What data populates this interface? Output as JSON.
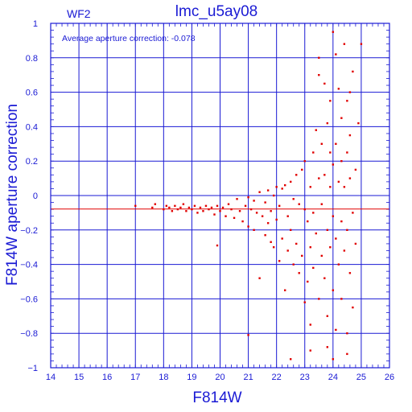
{
  "chart_data": {
    "type": "scatter",
    "panel_label": "WF2",
    "title": "lmc_u5ay08",
    "annotation": "Average aperture correction:  -0.078",
    "xlabel": "F814W",
    "ylabel": "F814W aperture correction",
    "xlim": [
      14,
      26
    ],
    "ylim": [
      -1,
      1
    ],
    "x_ticks": [
      14,
      15,
      16,
      17,
      18,
      19,
      20,
      21,
      22,
      23,
      24,
      25,
      26
    ],
    "y_ticks": [
      -1,
      -0.8,
      -0.6,
      -0.4,
      -0.2,
      0,
      0.2,
      0.4,
      0.6,
      0.8,
      1
    ],
    "y_tick_labels": [
      "−1",
      "−0.8",
      "−0.6",
      "−0.4",
      "−0.2",
      "0",
      "0.2",
      "0.4",
      "0.6",
      "0.8",
      "1"
    ],
    "grid": true,
    "average_line": -0.078,
    "colors": {
      "axis": "#1a1ad4",
      "points": "#e00000",
      "average_line": "#e00000"
    },
    "series": [
      {
        "points": [
          [
            17.0,
            -0.06
          ],
          [
            17.6,
            -0.07
          ],
          [
            17.7,
            -0.05
          ],
          [
            18.0,
            -0.08
          ],
          [
            18.1,
            -0.06
          ],
          [
            18.2,
            -0.07
          ],
          [
            18.3,
            -0.09
          ],
          [
            18.4,
            -0.06
          ],
          [
            18.5,
            -0.08
          ],
          [
            18.6,
            -0.07
          ],
          [
            18.7,
            -0.05
          ],
          [
            18.8,
            -0.09
          ],
          [
            18.9,
            -0.07
          ],
          [
            19.0,
            -0.08
          ],
          [
            19.1,
            -0.06
          ],
          [
            19.2,
            -0.1
          ],
          [
            19.3,
            -0.07
          ],
          [
            19.4,
            -0.09
          ],
          [
            19.5,
            -0.06
          ],
          [
            19.6,
            -0.08
          ],
          [
            19.7,
            -0.07
          ],
          [
            19.8,
            -0.11
          ],
          [
            19.9,
            -0.06
          ],
          [
            19.9,
            -0.29
          ],
          [
            20.0,
            -0.09
          ],
          [
            20.1,
            -0.07
          ],
          [
            20.2,
            -0.12
          ],
          [
            20.3,
            -0.05
          ],
          [
            20.4,
            -0.08
          ],
          [
            20.5,
            -0.13
          ],
          [
            20.6,
            -0.02
          ],
          [
            20.7,
            -0.09
          ],
          [
            20.8,
            -0.15
          ],
          [
            20.9,
            -0.06
          ],
          [
            21.0,
            -0.01
          ],
          [
            21.0,
            -0.18
          ],
          [
            21.1,
            -0.08
          ],
          [
            21.2,
            -0.03
          ],
          [
            21.2,
            -0.2
          ],
          [
            21.3,
            -0.1
          ],
          [
            21.4,
            0.02
          ],
          [
            21.4,
            -0.48
          ],
          [
            21.5,
            -0.12
          ],
          [
            21.6,
            -0.04
          ],
          [
            21.6,
            -0.23
          ],
          [
            21.7,
            0.03
          ],
          [
            21.7,
            -0.16
          ],
          [
            21.8,
            -0.09
          ],
          [
            21.8,
            -0.27
          ],
          [
            21.9,
            0.0
          ],
          [
            21.9,
            -0.3
          ],
          [
            22.0,
            0.05
          ],
          [
            22.0,
            -0.14
          ],
          [
            22.1,
            -0.06
          ],
          [
            22.1,
            -0.38
          ],
          [
            22.2,
            0.04
          ],
          [
            22.2,
            -0.25
          ],
          [
            22.3,
            -0.55
          ],
          [
            22.3,
            0.06
          ],
          [
            22.4,
            -0.12
          ],
          [
            22.4,
            -0.32
          ],
          [
            22.5,
            0.08
          ],
          [
            22.5,
            -0.2
          ],
          [
            22.6,
            -0.4
          ],
          [
            22.6,
            -0.02
          ],
          [
            22.7,
            0.12
          ],
          [
            22.7,
            -0.28
          ],
          [
            22.8,
            -0.45
          ],
          [
            22.8,
            -0.05
          ],
          [
            22.9,
            0.15
          ],
          [
            22.9,
            -0.35
          ],
          [
            23.0,
            -0.08
          ],
          [
            23.0,
            -0.62
          ],
          [
            23.0,
            0.2
          ],
          [
            23.1,
            -0.15
          ],
          [
            23.1,
            -0.5
          ],
          [
            23.2,
            0.05
          ],
          [
            23.2,
            -0.3
          ],
          [
            23.2,
            -0.75
          ],
          [
            23.3,
            0.25
          ],
          [
            23.3,
            -0.1
          ],
          [
            23.3,
            -0.42
          ],
          [
            23.4,
            0.38
          ],
          [
            23.4,
            -0.22
          ],
          [
            23.5,
            0.1
          ],
          [
            23.5,
            -0.6
          ],
          [
            23.5,
            0.8
          ],
          [
            23.6,
            -0.35
          ],
          [
            23.6,
            0.3
          ],
          [
            23.6,
            -0.05
          ],
          [
            23.7,
            0.65
          ],
          [
            23.7,
            -0.48
          ],
          [
            23.7,
            0.12
          ],
          [
            23.8,
            -0.2
          ],
          [
            23.8,
            0.42
          ],
          [
            23.8,
            -0.7
          ],
          [
            23.9,
            0.05
          ],
          [
            23.9,
            -0.3
          ],
          [
            23.9,
            0.55
          ],
          [
            24.0,
            0.18
          ],
          [
            24.0,
            -0.12
          ],
          [
            24.0,
            -0.55
          ],
          [
            24.0,
            0.95
          ],
          [
            24.1,
            0.3
          ],
          [
            24.1,
            -0.25
          ],
          [
            24.1,
            -0.78
          ],
          [
            24.2,
            0.08
          ],
          [
            24.2,
            0.62
          ],
          [
            24.2,
            -0.4
          ],
          [
            24.3,
            0.2
          ],
          [
            24.3,
            -0.15
          ],
          [
            24.3,
            -0.6
          ],
          [
            24.3,
            0.45
          ],
          [
            24.4,
            0.05
          ],
          [
            24.4,
            -0.32
          ],
          [
            24.4,
            0.88
          ],
          [
            24.5,
            0.25
          ],
          [
            24.5,
            -0.2
          ],
          [
            24.5,
            -0.8
          ],
          [
            24.5,
            0.55
          ],
          [
            24.6,
            0.1
          ],
          [
            24.6,
            -0.45
          ],
          [
            24.6,
            0.35
          ],
          [
            24.7,
            -0.1
          ],
          [
            24.7,
            0.72
          ],
          [
            24.7,
            -0.65
          ],
          [
            24.8,
            0.15
          ],
          [
            24.8,
            -0.28
          ],
          [
            24.9,
            0.42
          ],
          [
            25.0,
            0.88
          ],
          [
            23.2,
            -0.9
          ],
          [
            22.5,
            -0.95
          ],
          [
            21.0,
            -0.81
          ],
          [
            23.8,
            -0.88
          ],
          [
            24.0,
            -0.95
          ],
          [
            24.5,
            -0.92
          ],
          [
            23.5,
            0.7
          ],
          [
            24.1,
            0.82
          ],
          [
            24.6,
            0.6
          ],
          [
            23.9,
            0.25
          ]
        ]
      }
    ]
  }
}
